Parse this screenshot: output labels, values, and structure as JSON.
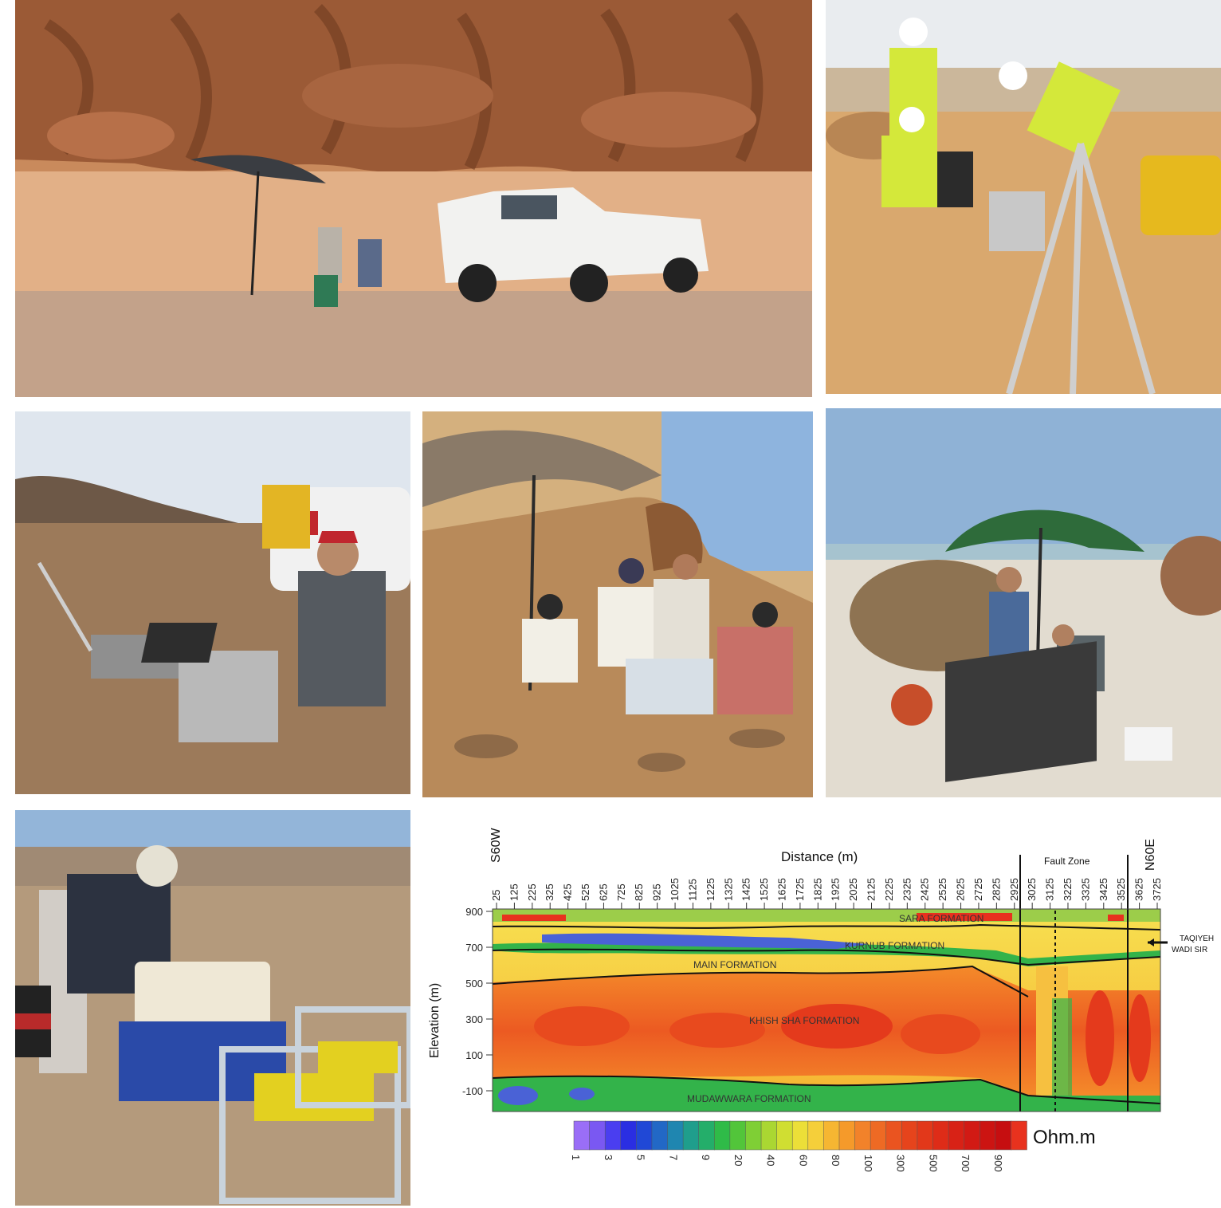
{
  "photos": [
    {
      "id": "photo-1",
      "subject": "desert-wadi-field-camp-pickup-truck"
    },
    {
      "id": "photo-2",
      "subject": "crew-in-safety-vests-with-tripod-and-generator"
    },
    {
      "id": "photo-3",
      "subject": "operator-with-laptop-beside-pickup"
    },
    {
      "id": "photo-4",
      "subject": "crew-under-umbrella-among-rocks"
    },
    {
      "id": "photo-5",
      "subject": "crew-with-green-umbrella-and-cable-reel"
    },
    {
      "id": "photo-6",
      "subject": "operator-seated-with-resistivity-meter-and-cable-reels"
    }
  ],
  "section": {
    "direction_left": "S60W",
    "direction_right": "N60E",
    "distance_label": "Distance (m)",
    "fault_zone_label": "Fault Zone",
    "elevation_label": "Elevation (m)",
    "right_label_line1": "TAQIYEH",
    "right_label_line2": "WADI SIR",
    "colorbar_unit": "Ohm.m",
    "formations": {
      "sara": "SARA FORMATION",
      "kurnub": "KURNUB FORMATION",
      "main": "MAIN FORMATION",
      "khisha": "KHISH SHA FORMATION",
      "mudawwara": "MUDAWWARA FORMATION"
    },
    "distance_ticks": [
      "25",
      "125",
      "225",
      "325",
      "425",
      "525",
      "625",
      "725",
      "825",
      "925",
      "1025",
      "1125",
      "1225",
      "1325",
      "1425",
      "1525",
      "1625",
      "1725",
      "1825",
      "1925",
      "2025",
      "2125",
      "2225",
      "2325",
      "2425",
      "2525",
      "2625",
      "2725",
      "2825",
      "2925",
      "3025",
      "3125",
      "3225",
      "3325",
      "3425",
      "3525",
      "3625",
      "3725"
    ],
    "elevation_ticks": [
      "900",
      "700",
      "500",
      "300",
      "100",
      "-100"
    ],
    "colorbar_ticks": [
      "1",
      "3",
      "5",
      "7",
      "9",
      "20",
      "40",
      "60",
      "80",
      "100",
      "300",
      "500",
      "700",
      "900"
    ],
    "colors": {
      "low": "#8a5cf5",
      "blue": "#1e3cd6",
      "green": "#33b34a",
      "yellow": "#f5e04a",
      "orange": "#f59a2a",
      "red": "#e8321e"
    }
  }
}
